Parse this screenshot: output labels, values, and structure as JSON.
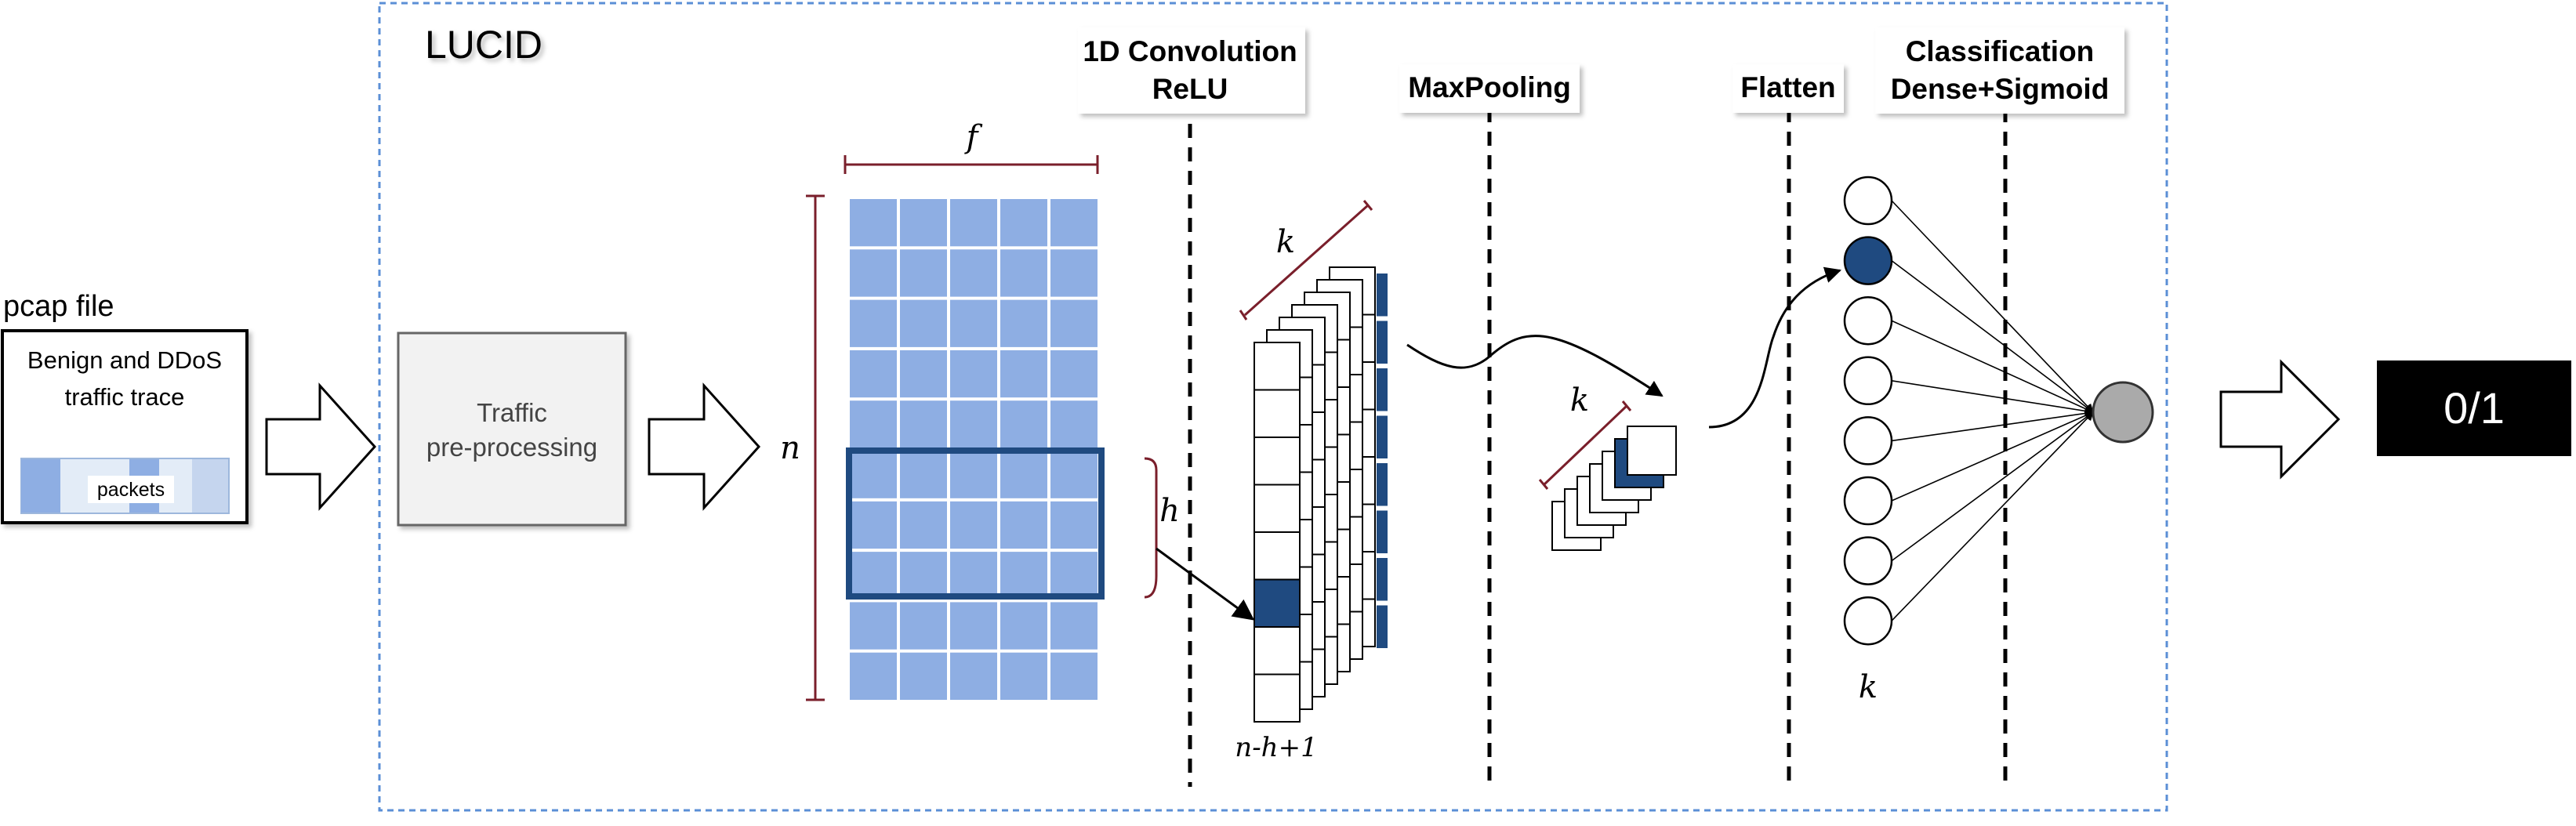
{
  "frame": {
    "title": "LUCID"
  },
  "input": {
    "caption": "pcap file",
    "box_line1": "Benign and DDoS",
    "box_line2": "traffic trace",
    "packets_label": "packets"
  },
  "preprocess": {
    "line1": "Traffic",
    "line2": "pre-processing"
  },
  "matrix": {
    "f_label": "f",
    "n_label": "n",
    "h_label": "h",
    "rows": 10,
    "cols": 5
  },
  "stages": {
    "conv_line1": "1D Convolution",
    "conv_line2": "ReLU",
    "maxpool": "MaxPooling",
    "flatten": "Flatten",
    "cls_line1": "Classification",
    "cls_line2": "Dense+Sigmoid"
  },
  "conv": {
    "k_label": "k",
    "bottom_label": "n-h+1"
  },
  "pool": {
    "k_label": "k"
  },
  "dense": {
    "k_label": "k",
    "neurons": 8
  },
  "output": {
    "label": "0/1"
  },
  "colors": {
    "cell_fill": "#8eaee3",
    "highlight": "#1f4a80",
    "frame": "#5b8fd6",
    "brace": "#7a1f2b",
    "output_bg": "#000000",
    "output_neuron": "#aaaaaa"
  }
}
